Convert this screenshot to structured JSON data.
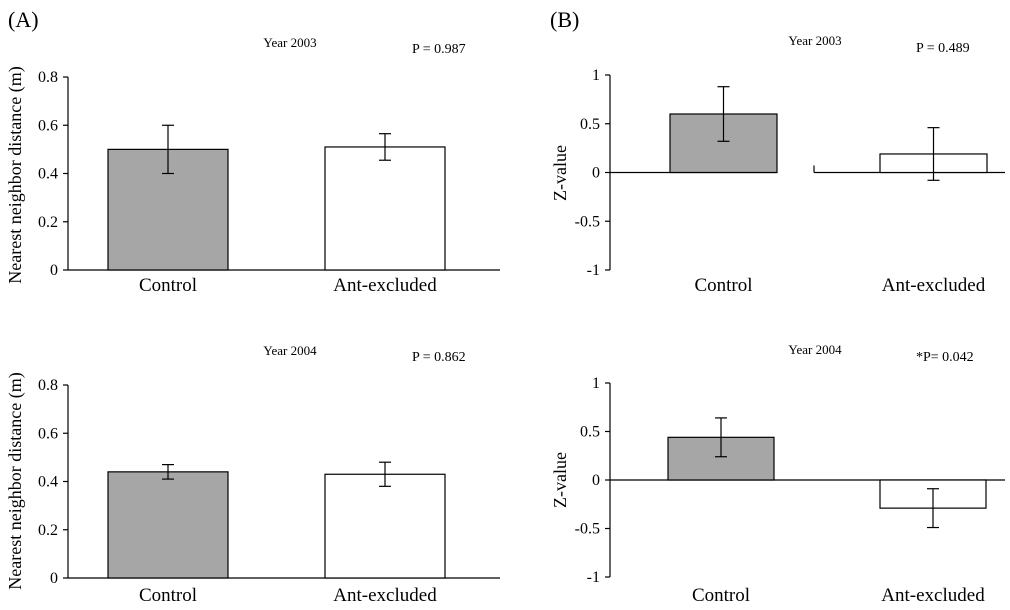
{
  "panels": {
    "A": "(A)",
    "B": "(B)"
  },
  "colors": {
    "control": "#a6a6a6",
    "ant_excluded": "#ffffff",
    "axis": "#000000"
  },
  "chart_data": [
    {
      "id": "A2003",
      "type": "bar",
      "title": "Year 2003",
      "pvalue": "P = 0.987",
      "ylabel": "Nearest neighbor distance (m)",
      "xlabel": "",
      "categories": [
        "Control",
        "Ant-excluded"
      ],
      "values": [
        0.5,
        0.51
      ],
      "errors": [
        0.1,
        0.055
      ],
      "ylim": [
        0,
        0.8
      ],
      "yticks": [
        0,
        0.2,
        0.4,
        0.6,
        0.8
      ],
      "ytick_labels": [
        "0",
        "0.2",
        "0.4",
        "0.6",
        "0.8"
      ],
      "grid": false
    },
    {
      "id": "B2003",
      "type": "bar",
      "title": "Year 2003",
      "pvalue": "P = 0.489",
      "ylabel": "Z-value",
      "xlabel": "",
      "categories": [
        "Control",
        "Ant-excluded"
      ],
      "values": [
        0.6,
        0.19
      ],
      "errors": [
        0.28,
        0.27
      ],
      "ylim": [
        -1,
        1
      ],
      "yticks": [
        -1,
        -0.5,
        0,
        0.5,
        1
      ],
      "ytick_labels": [
        "-1",
        "-0.5",
        "0",
        "0.5",
        "1"
      ],
      "grid": false
    },
    {
      "id": "A2004",
      "type": "bar",
      "title": "Year 2004",
      "pvalue": "P = 0.862",
      "ylabel": "Nearest neighbor distance (m)",
      "xlabel": "",
      "categories": [
        "Control",
        "Ant-excluded"
      ],
      "values": [
        0.44,
        0.43
      ],
      "errors": [
        0.03,
        0.05
      ],
      "ylim": [
        0,
        0.8
      ],
      "yticks": [
        0,
        0.2,
        0.4,
        0.6,
        0.8
      ],
      "ytick_labels": [
        "0",
        "0.2",
        "0.4",
        "0.6",
        "0.8"
      ],
      "grid": false
    },
    {
      "id": "B2004",
      "type": "bar",
      "title": "Year 2004",
      "pvalue": "*P= 0.042",
      "ylabel": "Z-value",
      "xlabel": "",
      "categories": [
        "Control",
        "Ant-excluded"
      ],
      "values": [
        0.44,
        -0.29
      ],
      "errors": [
        0.2,
        0.2
      ],
      "ylim": [
        -1,
        1
      ],
      "yticks": [
        -1,
        -0.5,
        0,
        0.5,
        1
      ],
      "ytick_labels": [
        "-1",
        "-0.5",
        "0",
        "0.5",
        "1"
      ],
      "grid": false
    }
  ]
}
